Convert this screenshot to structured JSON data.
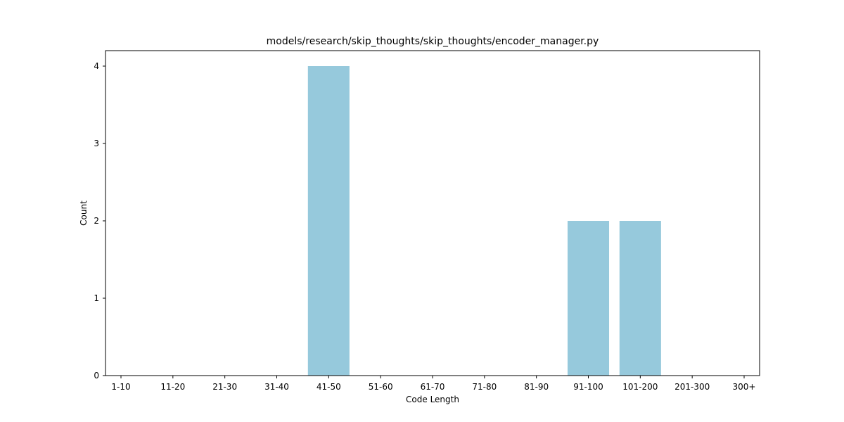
{
  "chart_data": {
    "type": "bar",
    "title": "models/research/skip_thoughts/skip_thoughts/encoder_manager.py",
    "xlabel": "Code Length",
    "ylabel": "Count",
    "categories": [
      "1-10",
      "11-20",
      "21-30",
      "31-40",
      "41-50",
      "51-60",
      "61-70",
      "71-80",
      "81-90",
      "91-100",
      "101-200",
      "201-300",
      "300+"
    ],
    "values": [
      0,
      0,
      0,
      0,
      4,
      0,
      0,
      0,
      0,
      2,
      2,
      0,
      0
    ],
    "ylim": [
      0,
      4.2
    ],
    "yticks": [
      0,
      1,
      2,
      3,
      4
    ],
    "bar_color": "#96c9dc",
    "grid": false,
    "legend": "none"
  }
}
